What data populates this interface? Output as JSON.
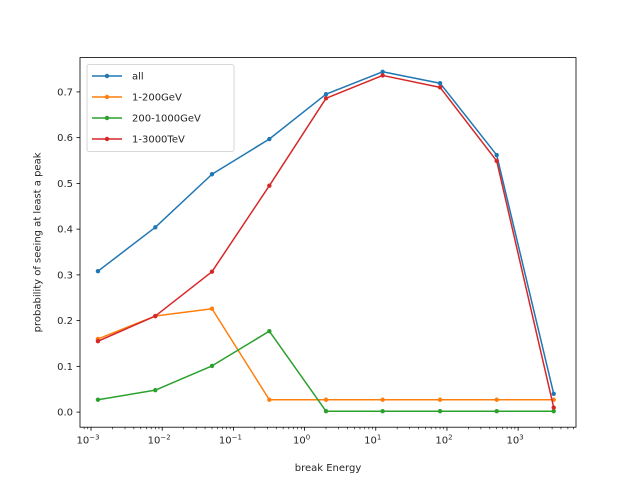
{
  "chart_data": {
    "type": "line",
    "xscale": "log",
    "xlabel": "break Energy",
    "ylabel": "probability of seeing at least a peak",
    "xlim": [
      0.0007,
      6500
    ],
    "ylim": [
      -0.033,
      0.775
    ],
    "x": [
      0.00125,
      0.008,
      0.05,
      0.32,
      2,
      12.5,
      80,
      500,
      3160
    ],
    "x_ticks": [
      {
        "value": 0.001,
        "label": "10",
        "exp": "−3"
      },
      {
        "value": 0.01,
        "label": "10",
        "exp": "−2"
      },
      {
        "value": 0.1,
        "label": "10",
        "exp": "−1"
      },
      {
        "value": 1,
        "label": "10",
        "exp": "0"
      },
      {
        "value": 10,
        "label": "10",
        "exp": "1"
      },
      {
        "value": 100,
        "label": "10",
        "exp": "2"
      },
      {
        "value": 1000,
        "label": "10",
        "exp": "3"
      }
    ],
    "y_ticks": [
      "0.0",
      "0.1",
      "0.2",
      "0.3",
      "0.4",
      "0.5",
      "0.6",
      "0.7"
    ],
    "grid": false,
    "legend_position": "top-left",
    "series": [
      {
        "name": "all",
        "color": "#1f77b4",
        "values": [
          0.308,
          0.404,
          0.52,
          0.597,
          0.695,
          0.744,
          0.719,
          0.562,
          0.04
        ]
      },
      {
        "name": "1-200GeV",
        "color": "#ff7f0e",
        "values": [
          0.16,
          0.21,
          0.226,
          0.027,
          0.027,
          0.027,
          0.027,
          0.027,
          0.027
        ]
      },
      {
        "name": "200-1000GeV",
        "color": "#2ca02c",
        "values": [
          0.027,
          0.048,
          0.101,
          0.177,
          0.002,
          0.002,
          0.002,
          0.002,
          0.002
        ]
      },
      {
        "name": "1-3000TeV",
        "color": "#d62728",
        "values": [
          0.155,
          0.21,
          0.307,
          0.495,
          0.686,
          0.736,
          0.71,
          0.549,
          0.01
        ]
      }
    ]
  }
}
